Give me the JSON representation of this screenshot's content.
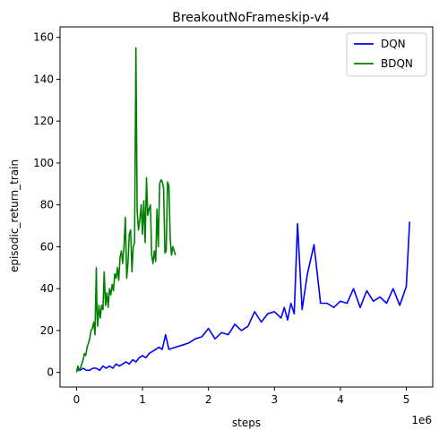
{
  "chart_data": {
    "type": "line",
    "title": "BreakoutNoFrameskip-v4",
    "xlabel": "steps",
    "ylabel": "episodic_return_train",
    "x_scale_label": "1e6",
    "xlim": [
      -0.25,
      5.4
    ],
    "ylim": [
      -7,
      165
    ],
    "x_ticks": [
      0,
      1,
      2,
      3,
      4,
      5
    ],
    "x_tick_labels": [
      "0",
      "1",
      "2",
      "3",
      "4",
      "5"
    ],
    "y_ticks": [
      0,
      20,
      40,
      60,
      80,
      100,
      120,
      140,
      160
    ],
    "y_tick_labels": [
      "0",
      "20",
      "40",
      "60",
      "80",
      "100",
      "120",
      "140",
      "160"
    ],
    "grid": false,
    "legend_position": "top-right",
    "series": [
      {
        "name": "DQN",
        "color": "#0000ff",
        "x": [
          0.0,
          0.05,
          0.1,
          0.15,
          0.2,
          0.25,
          0.3,
          0.35,
          0.4,
          0.45,
          0.5,
          0.55,
          0.6,
          0.65,
          0.7,
          0.75,
          0.8,
          0.85,
          0.9,
          0.95,
          1.0,
          1.05,
          1.1,
          1.15,
          1.2,
          1.25,
          1.3,
          1.35,
          1.4,
          1.5,
          1.6,
          1.7,
          1.8,
          1.9,
          2.0,
          2.1,
          2.2,
          2.3,
          2.4,
          2.5,
          2.6,
          2.7,
          2.8,
          2.9,
          3.0,
          3.1,
          3.15,
          3.2,
          3.25,
          3.3,
          3.35,
          3.42,
          3.5,
          3.6,
          3.7,
          3.8,
          3.9,
          4.0,
          4.1,
          4.2,
          4.3,
          4.4,
          4.5,
          4.6,
          4.7,
          4.8,
          4.9,
          5.0,
          5.05
        ],
        "y": [
          1,
          1,
          2,
          1,
          1,
          2,
          2,
          1,
          3,
          2,
          3,
          2,
          4,
          3,
          4,
          5,
          4,
          6,
          5,
          7,
          8,
          7,
          9,
          10,
          11,
          12,
          11,
          18,
          11,
          12,
          13,
          14,
          16,
          17,
          21,
          16,
          19,
          18,
          23,
          20,
          22,
          29,
          24,
          28,
          29,
          26,
          31,
          25,
          33,
          28,
          71,
          30,
          47,
          61,
          33,
          33,
          31,
          34,
          33,
          40,
          31,
          39,
          34,
          36,
          33,
          40,
          32,
          41,
          72
        ]
      },
      {
        "name": "BDQN",
        "color": "#008000",
        "x": [
          0.0,
          0.02,
          0.04,
          0.06,
          0.08,
          0.1,
          0.12,
          0.14,
          0.16,
          0.18,
          0.2,
          0.22,
          0.24,
          0.26,
          0.28,
          0.3,
          0.31,
          0.32,
          0.34,
          0.36,
          0.38,
          0.4,
          0.42,
          0.44,
          0.46,
          0.48,
          0.5,
          0.52,
          0.54,
          0.56,
          0.58,
          0.6,
          0.62,
          0.64,
          0.66,
          0.68,
          0.7,
          0.72,
          0.74,
          0.76,
          0.78,
          0.8,
          0.82,
          0.84,
          0.86,
          0.88,
          0.9,
          0.92,
          0.94,
          0.96,
          0.98,
          1.0,
          1.02,
          1.04,
          1.06,
          1.08,
          1.1,
          1.12,
          1.14,
          1.16,
          1.18,
          1.2,
          1.22,
          1.24,
          1.26,
          1.28,
          1.3,
          1.32,
          1.34,
          1.36,
          1.38,
          1.4,
          1.42,
          1.44,
          1.46,
          1.48,
          1.5
        ],
        "y": [
          0,
          3,
          1,
          2,
          4,
          6,
          9,
          8,
          12,
          14,
          16,
          20,
          21,
          24,
          18,
          50,
          30,
          22,
          32,
          26,
          32,
          30,
          48,
          32,
          38,
          31,
          40,
          37,
          42,
          39,
          47,
          45,
          50,
          44,
          55,
          58,
          52,
          60,
          74,
          45,
          52,
          66,
          68,
          48,
          60,
          62,
          155,
          77,
          68,
          73,
          80,
          66,
          82,
          62,
          93,
          75,
          78,
          80,
          56,
          52,
          58,
          53,
          78,
          60,
          90,
          92,
          91,
          88,
          57,
          58,
          91,
          89,
          64,
          56,
          60,
          58,
          56
        ]
      }
    ]
  }
}
